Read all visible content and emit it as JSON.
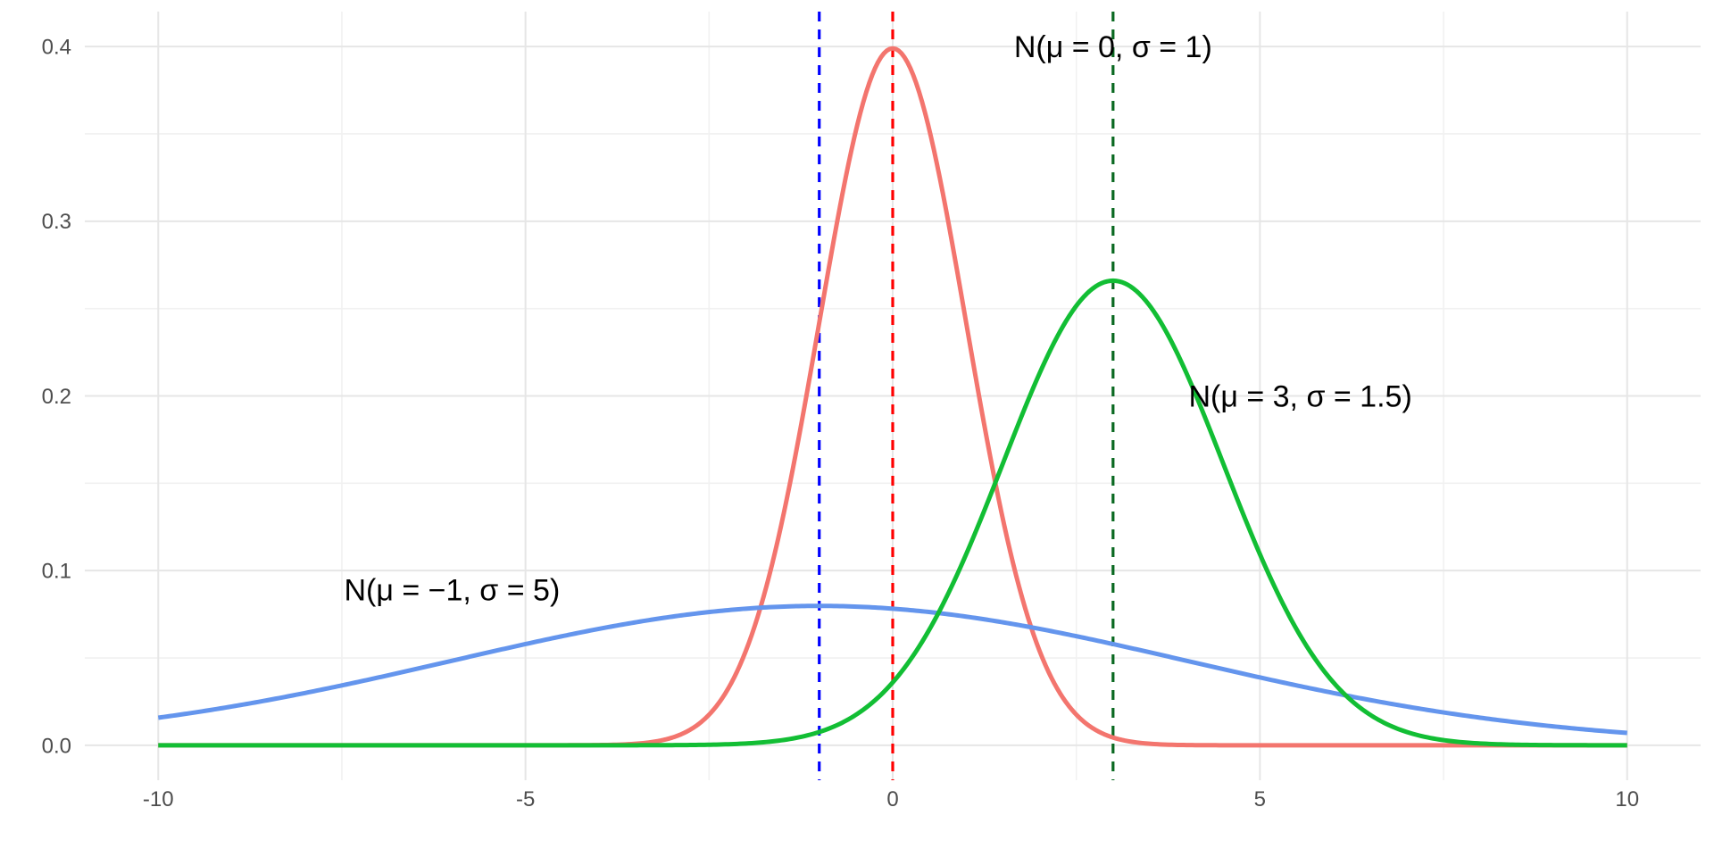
{
  "chart_data": {
    "type": "line",
    "title": "",
    "xlabel": "",
    "ylabel": "",
    "background": "#FFFFFF",
    "grid": {
      "show": true,
      "major_color": "#E6E6E6",
      "minor_color": "#F1F1F1"
    },
    "tick_label_color": "#4D4D4D",
    "x_axis": {
      "tick_labels": [
        "-10",
        "-5",
        "0",
        "5",
        "10"
      ],
      "tick_values": [
        -10,
        -5,
        0,
        5,
        10
      ],
      "minor_tick_values": [
        -7.5,
        -2.5,
        2.5,
        7.5
      ],
      "range": [
        -11,
        11
      ],
      "data_range": [
        -10,
        10
      ]
    },
    "y_axis": {
      "tick_labels": [
        "0.0",
        "0.1",
        "0.2",
        "0.3",
        "0.4"
      ],
      "tick_values": [
        0.0,
        0.1,
        0.2,
        0.3,
        0.4
      ],
      "minor_tick_values": [
        0.05,
        0.15,
        0.25,
        0.35
      ],
      "range": [
        -0.02,
        0.42
      ]
    },
    "series": [
      {
        "name": "normal-mu0-sigma1",
        "label": "N(μ = 0, σ = 1)",
        "distribution": "normal",
        "mu": 0,
        "sigma": 1,
        "peak_density": 0.399,
        "color": "#F3756E",
        "line_width": 5,
        "line_style": "solid"
      },
      {
        "name": "normal-mu-minus1-sigma5",
        "label": "N(μ = −1, σ = 5)",
        "distribution": "normal",
        "mu": -1,
        "sigma": 5,
        "peak_density": 0.08,
        "color": "#6495ED",
        "line_width": 5,
        "line_style": "solid"
      },
      {
        "name": "normal-mu3-sigma1point5",
        "label": "N(μ = 3, σ = 1.5)",
        "distribution": "normal",
        "mu": 3,
        "sigma": 1.5,
        "peak_density": 0.266,
        "color": "#12BE34",
        "line_width": 5,
        "line_style": "solid"
      }
    ],
    "mean_lines": [
      {
        "name": "mean-line-blue",
        "x": -1,
        "color": "#0000FF",
        "style": "dashed",
        "width": 3.2
      },
      {
        "name": "mean-line-red",
        "x": 0,
        "color": "#FF0000",
        "style": "dashed",
        "width": 3.2
      },
      {
        "name": "mean-line-darkgreen",
        "x": 3,
        "color": "#0A6921",
        "style": "dashed",
        "width": 3.2
      }
    ],
    "annotations": [
      {
        "name": "label-standard-normal",
        "text": "N(μ = 0, σ = 1)",
        "x": 3,
        "y": 0.4
      },
      {
        "name": "label-normal-mu3",
        "text": "N(μ = 3, σ = 1.5)",
        "x": 5.55,
        "y": 0.2
      },
      {
        "name": "label-normal-mu-minus1",
        "text": "N(μ = −1, σ = 5)",
        "x": -6,
        "y": 0.089
      }
    ],
    "legend": {
      "show": false
    }
  }
}
